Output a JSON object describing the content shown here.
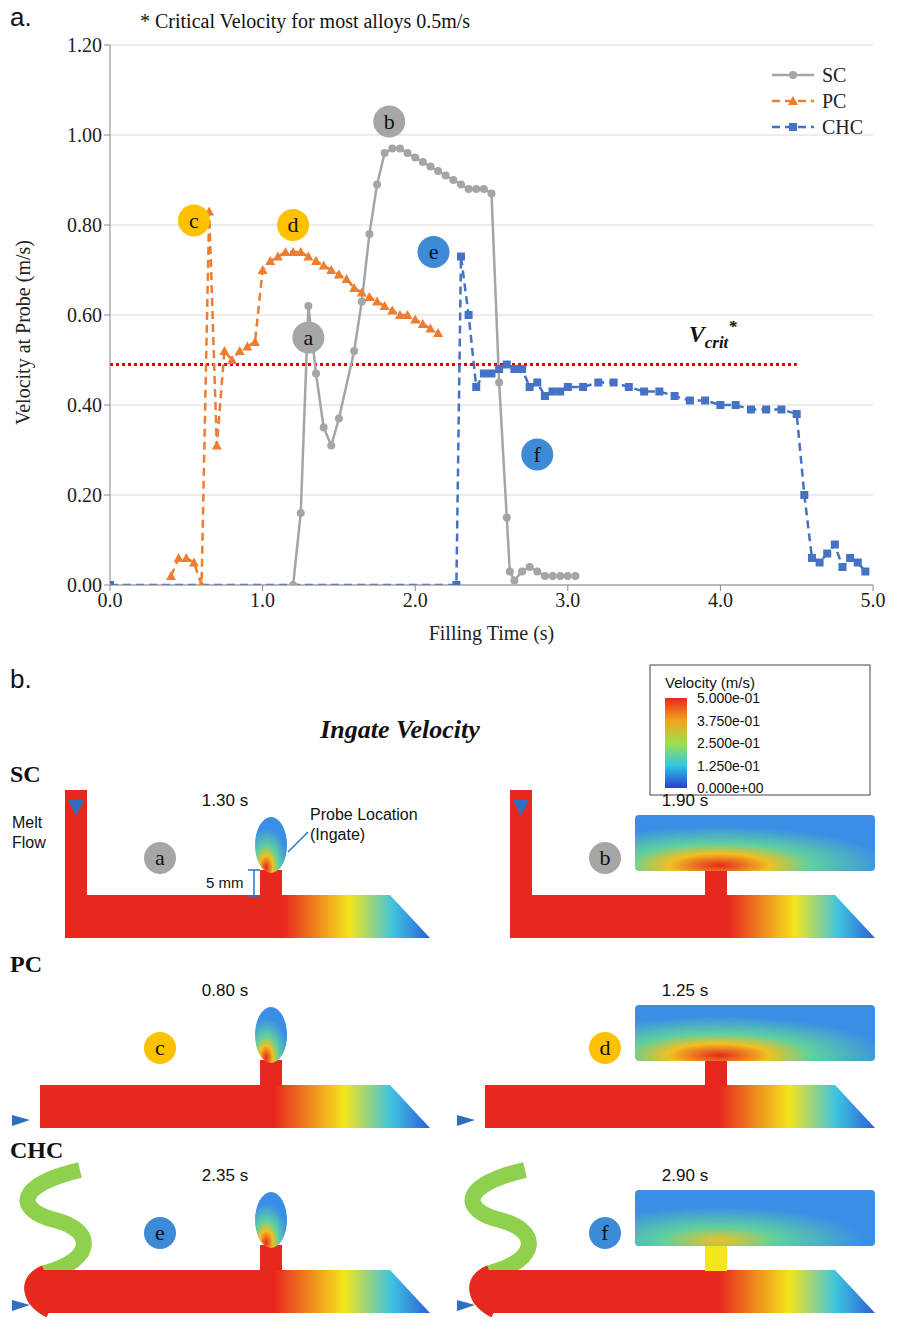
{
  "panel_labels": [
    "a.",
    "b."
  ],
  "chart_data": {
    "type": "line",
    "x_label": "Filling Time (s)",
    "y_label": "Velocity at Probe (m/s)",
    "xlim": [
      0,
      5
    ],
    "xticks": [
      {
        "value": 0,
        "label": "0.0"
      },
      {
        "value": 1,
        "label": "1.0"
      },
      {
        "value": 2,
        "label": "2.0"
      },
      {
        "value": 3,
        "label": "3.0"
      },
      {
        "value": 4,
        "label": "4.0"
      },
      {
        "value": 5,
        "label": "5.0"
      }
    ],
    "ylim": [
      0,
      1.2
    ],
    "yticks": [
      {
        "value": 0,
        "label": "0.00"
      },
      {
        "value": 0.2,
        "label": "0.20"
      },
      {
        "value": 0.4,
        "label": "0.40"
      },
      {
        "value": 0.6,
        "label": "0.60"
      },
      {
        "value": 0.8,
        "label": "0.80"
      },
      {
        "value": 1,
        "label": "1.00"
      },
      {
        "value": 1.2,
        "label": "1.20"
      }
    ],
    "grid": true,
    "legend": "top-right",
    "series": [
      {
        "name": "SC",
        "color": "#a5a5a5",
        "marker": "circle",
        "line_style": "solid",
        "x": [
          1.2,
          1.25,
          1.3,
          1.35,
          1.4,
          1.45,
          1.5,
          1.6,
          1.65,
          1.7,
          1.75,
          1.8,
          1.85,
          1.9,
          1.95,
          2.0,
          2.05,
          2.1,
          2.15,
          2.2,
          2.25,
          2.3,
          2.35,
          2.4,
          2.45,
          2.5,
          2.55,
          2.6,
          2.62,
          2.65,
          2.7,
          2.75,
          2.8,
          2.85,
          2.9,
          2.95,
          3.0,
          3.05
        ],
        "values": [
          0,
          0.16,
          0.62,
          0.47,
          0.35,
          0.31,
          0.37,
          0.52,
          0.63,
          0.78,
          0.89,
          0.96,
          0.97,
          0.97,
          0.96,
          0.95,
          0.94,
          0.93,
          0.92,
          0.91,
          0.9,
          0.89,
          0.88,
          0.88,
          0.88,
          0.87,
          0.45,
          0.15,
          0.03,
          0.01,
          0.03,
          0.04,
          0.03,
          0.02,
          0.02,
          0.02,
          0.02,
          0.02
        ]
      },
      {
        "name": "PC",
        "color": "#ed7d31",
        "marker": "triangle",
        "line_style": "dashed",
        "x": [
          0.4,
          0.45,
          0.5,
          0.55,
          0.6,
          0.65,
          0.7,
          0.75,
          0.8,
          0.85,
          0.9,
          0.95,
          1.0,
          1.05,
          1.1,
          1.15,
          1.2,
          1.25,
          1.3,
          1.35,
          1.4,
          1.45,
          1.5,
          1.55,
          1.6,
          1.65,
          1.7,
          1.75,
          1.8,
          1.85,
          1.9,
          1.95,
          2.0,
          2.05,
          2.1,
          2.15
        ],
        "values": [
          0.02,
          0.06,
          0.06,
          0.05,
          0,
          0.83,
          0.31,
          0.52,
          0.5,
          0.52,
          0.53,
          0.54,
          0.7,
          0.72,
          0.73,
          0.74,
          0.74,
          0.74,
          0.73,
          0.72,
          0.71,
          0.7,
          0.69,
          0.68,
          0.66,
          0.65,
          0.64,
          0.63,
          0.62,
          0.61,
          0.6,
          0.6,
          0.59,
          0.58,
          0.57,
          0.56
        ]
      },
      {
        "name": "CHC",
        "color": "#4472c4",
        "marker": "square",
        "line_style": "dashed",
        "x": [
          0,
          2.27,
          2.3,
          2.35,
          2.4,
          2.45,
          2.5,
          2.55,
          2.6,
          2.65,
          2.7,
          2.75,
          2.8,
          2.85,
          2.9,
          2.95,
          3.0,
          3.1,
          3.2,
          3.3,
          3.4,
          3.5,
          3.6,
          3.7,
          3.8,
          3.9,
          4.0,
          4.1,
          4.2,
          4.3,
          4.4,
          4.5,
          4.55,
          4.6,
          4.65,
          4.7,
          4.75,
          4.8,
          4.85,
          4.9,
          4.95
        ],
        "values": [
          0,
          0,
          0.73,
          0.6,
          0.44,
          0.47,
          0.47,
          0.48,
          0.49,
          0.48,
          0.48,
          0.44,
          0.45,
          0.42,
          0.43,
          0.43,
          0.44,
          0.44,
          0.45,
          0.45,
          0.44,
          0.43,
          0.43,
          0.42,
          0.41,
          0.41,
          0.4,
          0.4,
          0.39,
          0.39,
          0.39,
          0.38,
          0.2,
          0.06,
          0.05,
          0.07,
          0.09,
          0.04,
          0.06,
          0.05,
          0.03
        ]
      }
    ],
    "reference_line": {
      "y": 0.49,
      "xlim": [
        0,
        4.5
      ],
      "color": "#e00000",
      "line_style": "dotted",
      "label": {
        "text": "V",
        "subscript": "crit",
        "superscript": "*",
        "x": 3.95,
        "y": 0.54
      }
    },
    "annotations": [
      {
        "text": "* Critical Velocity for most alloys 0.5m/s"
      },
      {
        "text": "a",
        "x": 1.3,
        "y": 0.55,
        "color": "#a6a6a6"
      },
      {
        "text": "b",
        "x": 1.83,
        "y": 1.03,
        "color": "#a6a6a6"
      },
      {
        "text": "c",
        "x": 0.55,
        "y": 0.81,
        "color": "#ffc000"
      },
      {
        "text": "d",
        "x": 1.2,
        "y": 0.8,
        "color": "#ffc000"
      },
      {
        "text": "e",
        "x": 2.12,
        "y": 0.74,
        "color": "#3d8ad6"
      },
      {
        "text": "f",
        "x": 2.8,
        "y": 0.29,
        "color": "#3d8ad6"
      }
    ]
  },
  "panel_b": {
    "title": "Ingate Velocity",
    "colorbar": {
      "title": "Velocity (m/s)",
      "range": [
        0,
        0.5
      ],
      "ticks": [
        {
          "value": 0.5,
          "label": "5.000e-01"
        },
        {
          "value": 0.375,
          "label": "3.750e-01"
        },
        {
          "value": 0.25,
          "label": "2.500e-01"
        },
        {
          "value": 0.125,
          "label": "1.250e-01"
        },
        {
          "value": 0,
          "label": "0.000e+00"
        }
      ]
    },
    "rows": [
      {
        "name": "SC",
        "frames": [
          {
            "marker": "a",
            "time": "1.30 s"
          },
          {
            "marker": "b",
            "time": "1.90 s"
          }
        ]
      },
      {
        "name": "PC",
        "frames": [
          {
            "marker": "c",
            "time": "0.80 s"
          },
          {
            "marker": "d",
            "time": "1.25 s"
          }
        ]
      },
      {
        "name": "CHC",
        "frames": [
          {
            "marker": "e",
            "time": "2.35 s"
          },
          {
            "marker": "f",
            "time": "2.90 s"
          }
        ]
      }
    ],
    "callouts": {
      "melt_flow": [
        "Melt",
        "Flow"
      ],
      "probe": [
        "Probe Location",
        "(Ingate)"
      ],
      "gap": "5 mm"
    }
  }
}
